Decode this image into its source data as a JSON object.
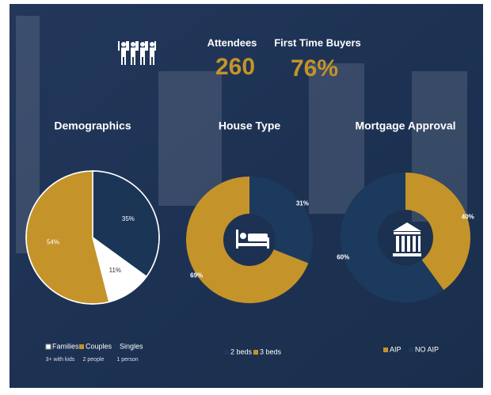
{
  "stats": [
    {
      "label": "Attendees",
      "value": "260"
    },
    {
      "label": "First Time Buyers",
      "value": "76%"
    }
  ],
  "chart_data": [
    {
      "type": "pie",
      "title": "Demographics",
      "categories": [
        "Families",
        "Couples",
        "Singles"
      ],
      "legend_notes": [
        "3+ with kids",
        "2 people",
        "1 person"
      ],
      "values": [
        11,
        54,
        35
      ],
      "value_labels": [
        "11%",
        "54%",
        "35%"
      ],
      "colors": [
        "#ffffff",
        "#c4932a",
        "#1b3557"
      ]
    },
    {
      "type": "donut",
      "title": "House Type",
      "categories": [
        "2 beds",
        "3 beds"
      ],
      "values": [
        31,
        69
      ],
      "value_labels": [
        "31%",
        "69%"
      ],
      "colors": [
        "#1b3a5e",
        "#c4932a"
      ]
    },
    {
      "type": "donut",
      "title": "Mortgage Approval",
      "categories": [
        "AIP",
        "NO AIP"
      ],
      "values": [
        40,
        60
      ],
      "value_labels": [
        "40%",
        "60%"
      ],
      "colors": [
        "#c4932a",
        "#1b3a5e"
      ]
    }
  ]
}
